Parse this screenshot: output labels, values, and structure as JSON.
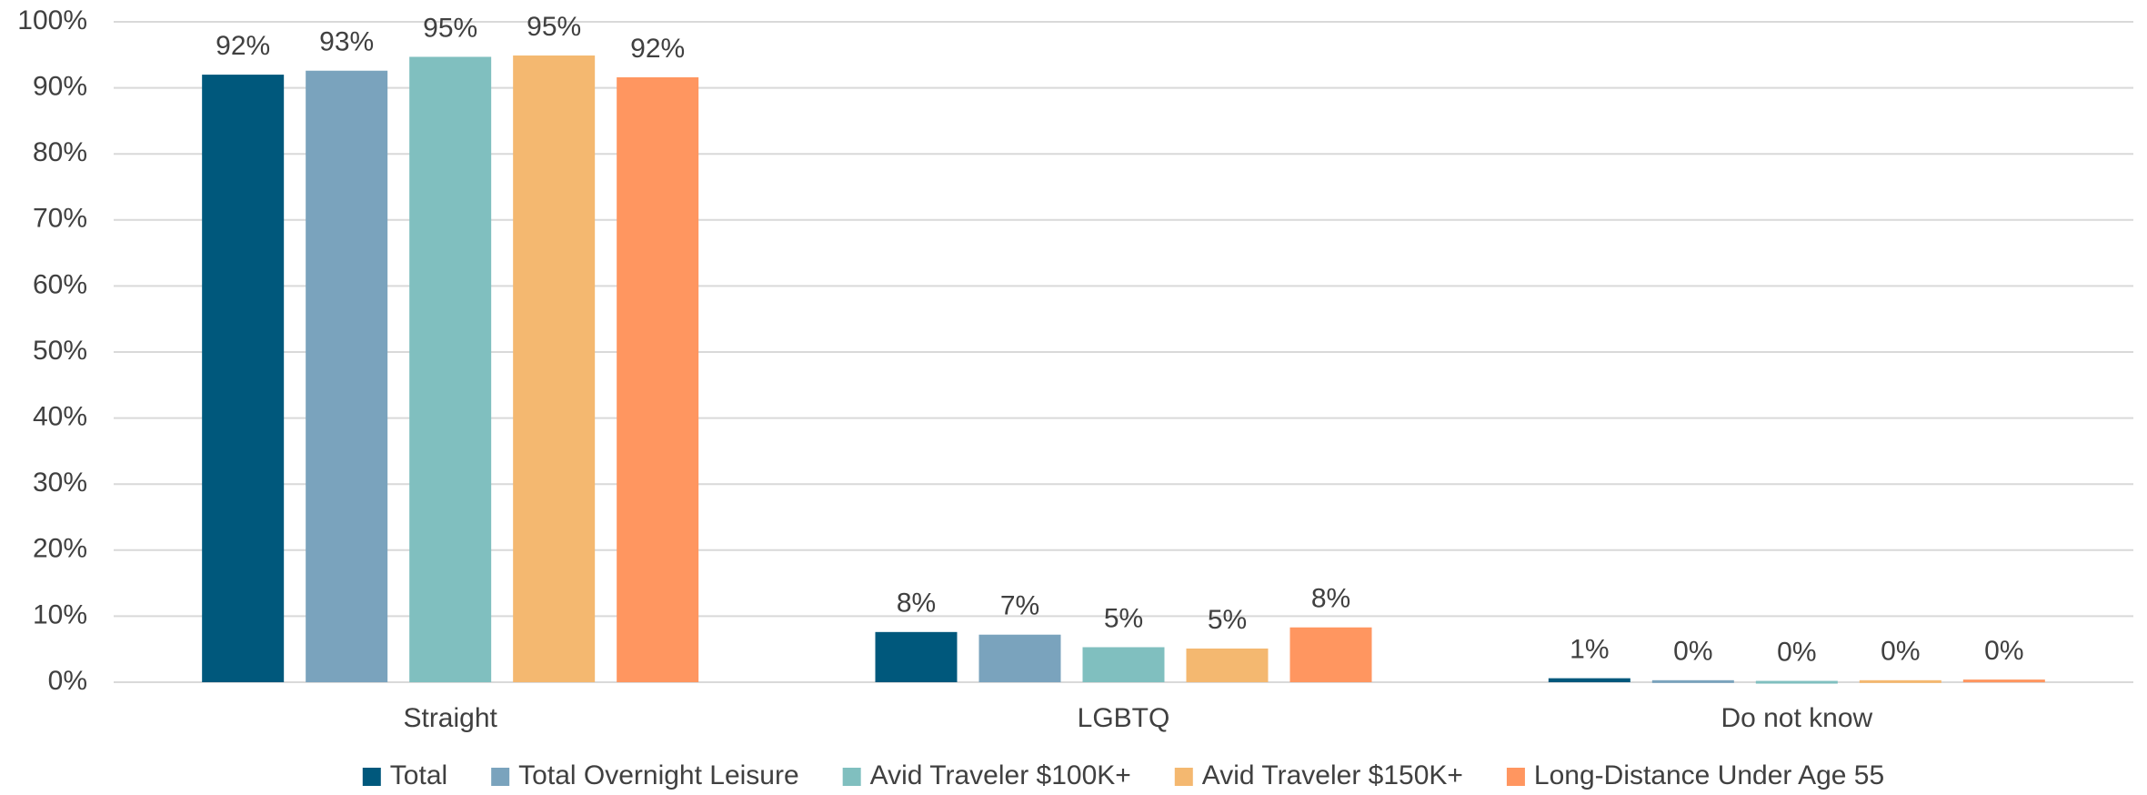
{
  "chart_data": {
    "type": "bar",
    "categories": [
      "Straight",
      "LGBTQ",
      "Do not know"
    ],
    "series": [
      {
        "name": "Total",
        "color": "#00587c",
        "values": [
          92.0,
          7.6,
          0.6
        ],
        "value_labels": [
          "92%",
          "8%",
          "1%"
        ]
      },
      {
        "name": "Total Overnight Leisure",
        "color": "#7aa3bd",
        "values": [
          92.6,
          7.2,
          0.3
        ],
        "value_labels": [
          "93%",
          "7%",
          "0%"
        ]
      },
      {
        "name": "Avid Traveler $100K+",
        "color": "#80bfbf",
        "values": [
          94.7,
          5.3,
          0.2
        ],
        "value_labels": [
          "95%",
          "5%",
          "0%"
        ]
      },
      {
        "name": "Avid Traveler $150K+",
        "color": "#f4b870",
        "values": [
          94.9,
          5.1,
          0.3
        ],
        "value_labels": [
          "95%",
          "5%",
          "0%"
        ]
      },
      {
        "name": "Long-Distance Under Age 55",
        "color": "#ff9660",
        "values": [
          91.6,
          8.3,
          0.4
        ],
        "value_labels": [
          "92%",
          "8%",
          "0%"
        ]
      }
    ],
    "ylim": [
      0,
      100
    ],
    "yticks": [
      {
        "value": 0,
        "label": "0%"
      },
      {
        "value": 10,
        "label": "10%"
      },
      {
        "value": 20,
        "label": "20%"
      },
      {
        "value": 30,
        "label": "30%"
      },
      {
        "value": 40,
        "label": "40%"
      },
      {
        "value": 50,
        "label": "50%"
      },
      {
        "value": 60,
        "label": "60%"
      },
      {
        "value": 70,
        "label": "70%"
      },
      {
        "value": 80,
        "label": "80%"
      },
      {
        "value": 90,
        "label": "90%"
      },
      {
        "value": 100,
        "label": "100%"
      }
    ],
    "grid": true,
    "legend": "bottom"
  }
}
